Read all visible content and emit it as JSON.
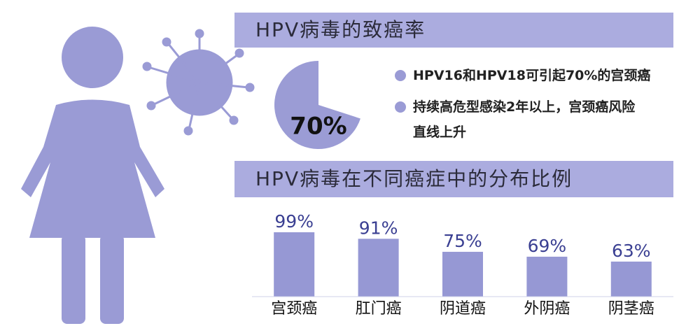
{
  "chart_data": [
    {
      "type": "pie",
      "title": "HPV病毒的致癌率",
      "values": [
        70
      ],
      "value_labels": [
        "70%"
      ],
      "color": "#9b9cd5",
      "annotations": [
        "HPV16和HPV18可引起70%的宫颈癌",
        "持续高危型感染2年以上，宫颈癌风险直线上升"
      ]
    },
    {
      "type": "bar",
      "title": "HPV病毒在不同癌症中的分布比例",
      "categories": [
        "宫颈癌",
        "肛门癌",
        "阴道癌",
        "外阴癌",
        "阴茎癌"
      ],
      "values": [
        99,
        91,
        75,
        69,
        63
      ],
      "value_labels": [
        "99%",
        "91%",
        "75%",
        "69%",
        "63%"
      ],
      "color": "#9698d4",
      "ylim": [
        20,
        100
      ]
    }
  ]
}
